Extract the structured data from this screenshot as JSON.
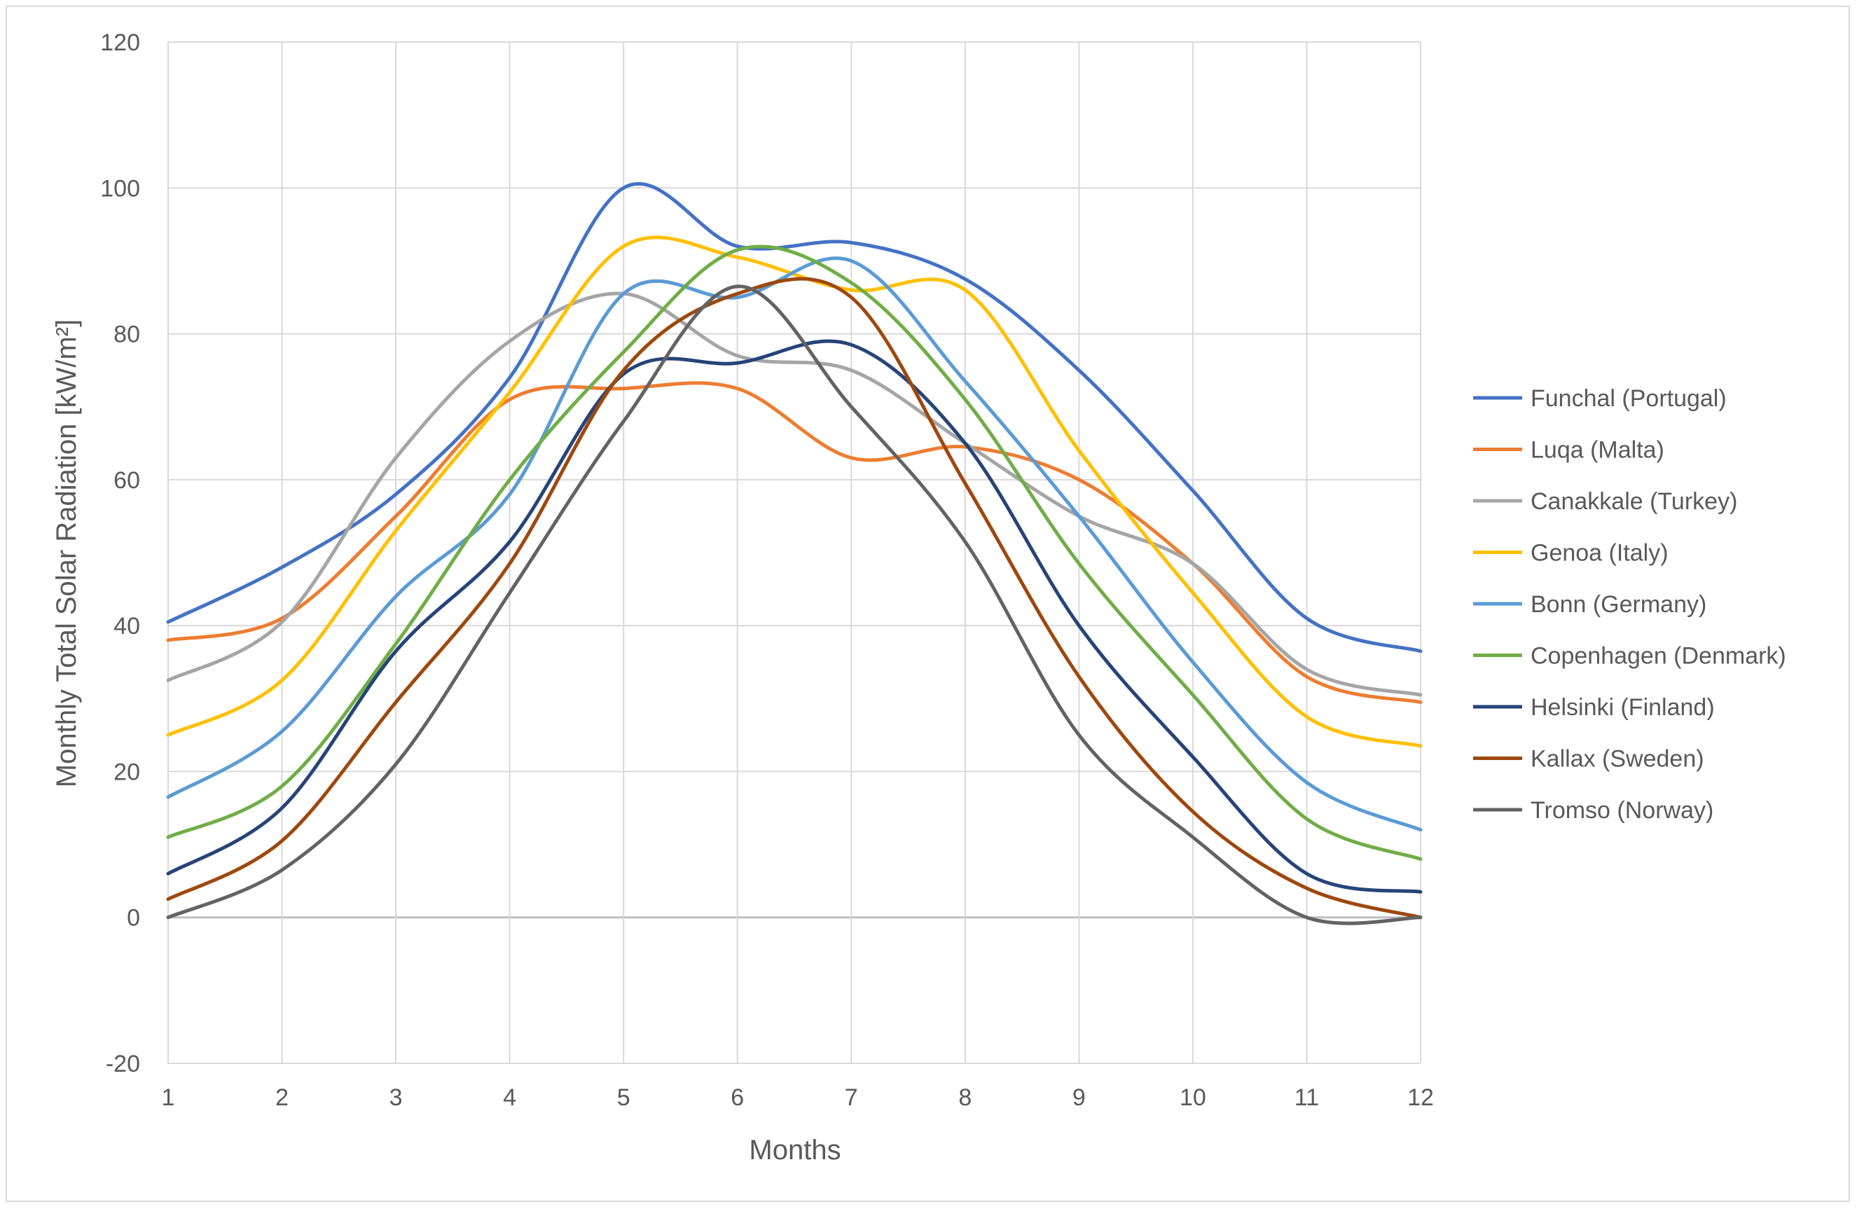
{
  "chart_data": {
    "type": "line",
    "title": "",
    "xlabel": "Months",
    "ylabel": "Monthly Total Solar Radiation [kW/m²]",
    "x": [
      1,
      2,
      3,
      4,
      5,
      6,
      7,
      8,
      9,
      10,
      11,
      12
    ],
    "xlim": [
      1,
      12
    ],
    "ylim": [
      -20,
      120
    ],
    "yticks": [
      -20,
      0,
      20,
      40,
      60,
      80,
      100,
      120
    ],
    "grid": true,
    "smooth": true,
    "legend_position": "right",
    "series": [
      {
        "name": "Funchal (Portugal)",
        "color": "#4472C4",
        "values": [
          40.5,
          48,
          58,
          74,
          100,
          92,
          92.5,
          87.5,
          75,
          58.5,
          41,
          36.5
        ]
      },
      {
        "name": "Luqa (Malta)",
        "color": "#ED7D31",
        "values": [
          38,
          41,
          55,
          71,
          72.5,
          72.5,
          63,
          64.5,
          60,
          48.5,
          33,
          29.5
        ]
      },
      {
        "name": "Canakkale (Turkey)",
        "color": "#A5A5A5",
        "values": [
          32.5,
          40.5,
          63,
          79,
          85.5,
          77,
          75,
          65,
          55,
          48.5,
          34,
          30.5
        ]
      },
      {
        "name": "Genoa (Italy)",
        "color": "#FFC000",
        "values": [
          25,
          32.5,
          53,
          72,
          92,
          90.5,
          86,
          86,
          64,
          44.5,
          27.5,
          23.5
        ]
      },
      {
        "name": "Bonn (Germany)",
        "color": "#5B9BD5",
        "values": [
          16.5,
          25.5,
          44,
          58,
          85.5,
          85,
          90,
          73.5,
          55,
          35,
          18.5,
          12
        ]
      },
      {
        "name": "Copenhagen (Denmark)",
        "color": "#70AD47",
        "values": [
          11,
          18,
          37.5,
          60,
          77.5,
          91.5,
          87,
          71,
          48.5,
          30.5,
          13.5,
          8
        ]
      },
      {
        "name": "Helsinki (Finland)",
        "color": "#264478",
        "values": [
          6,
          15,
          36.5,
          51.5,
          74.5,
          76,
          78.5,
          65,
          40,
          22,
          6,
          3.5
        ]
      },
      {
        "name": "Kallax (Sweden)",
        "color": "#9E480E",
        "values": [
          2.5,
          10.5,
          29.5,
          48.5,
          75,
          85.5,
          85,
          59.5,
          33,
          14.5,
          4,
          0
        ]
      },
      {
        "name": "Tromso (Norway)",
        "color": "#636363",
        "values": [
          0,
          6.5,
          21,
          44.5,
          68,
          86.5,
          70,
          51.5,
          25,
          11,
          0,
          0
        ]
      }
    ]
  }
}
